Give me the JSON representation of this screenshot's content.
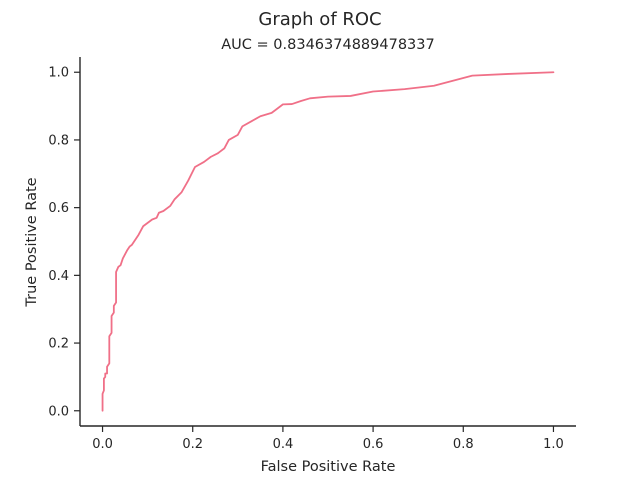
{
  "chart_data": {
    "type": "line",
    "suptitle": "Graph of ROC",
    "title": "AUC = 0.8346374889478337",
    "xlabel": "False Positive Rate",
    "ylabel": "True Positive Rate",
    "xlim": [
      -0.05,
      1.05
    ],
    "ylim": [
      -0.045,
      1.045
    ],
    "xticks": [
      0.0,
      0.2,
      0.4,
      0.6,
      0.8,
      1.0
    ],
    "xtick_labels": [
      "0.0",
      "0.2",
      "0.4",
      "0.6",
      "0.8",
      "1.0"
    ],
    "yticks": [
      0.0,
      0.2,
      0.4,
      0.6,
      0.8,
      1.0
    ],
    "ytick_labels": [
      "0.0",
      "0.2",
      "0.4",
      "0.6",
      "0.8",
      "1.0"
    ],
    "grid": false,
    "line_color": "#f07088",
    "series": [
      {
        "x": [
          0.0,
          0.0,
          0.003,
          0.003,
          0.006,
          0.006,
          0.01,
          0.01,
          0.015,
          0.015,
          0.02,
          0.02,
          0.025,
          0.025,
          0.03,
          0.03,
          0.035,
          0.04,
          0.04,
          0.045,
          0.055,
          0.06,
          0.065,
          0.075,
          0.08,
          0.09,
          0.1,
          0.11,
          0.12,
          0.125,
          0.135,
          0.15,
          0.16,
          0.175,
          0.19,
          0.205,
          0.225,
          0.24,
          0.255,
          0.26,
          0.27,
          0.28,
          0.3,
          0.31,
          0.33,
          0.35,
          0.375,
          0.385,
          0.4,
          0.42,
          0.44,
          0.46,
          0.5,
          0.55,
          0.6,
          0.67,
          0.735,
          0.82,
          0.9,
          1.0
        ],
        "y": [
          0.0,
          0.05,
          0.06,
          0.095,
          0.1,
          0.11,
          0.11,
          0.13,
          0.14,
          0.22,
          0.23,
          0.28,
          0.29,
          0.31,
          0.32,
          0.41,
          0.425,
          0.43,
          0.43,
          0.45,
          0.475,
          0.485,
          0.49,
          0.51,
          0.52,
          0.545,
          0.555,
          0.565,
          0.57,
          0.585,
          0.59,
          0.605,
          0.625,
          0.645,
          0.68,
          0.72,
          0.735,
          0.75,
          0.76,
          0.765,
          0.775,
          0.8,
          0.815,
          0.84,
          0.855,
          0.87,
          0.88,
          0.89,
          0.905,
          0.906,
          0.915,
          0.923,
          0.928,
          0.93,
          0.943,
          0.95,
          0.96,
          0.99,
          0.995,
          1.0
        ]
      }
    ]
  }
}
